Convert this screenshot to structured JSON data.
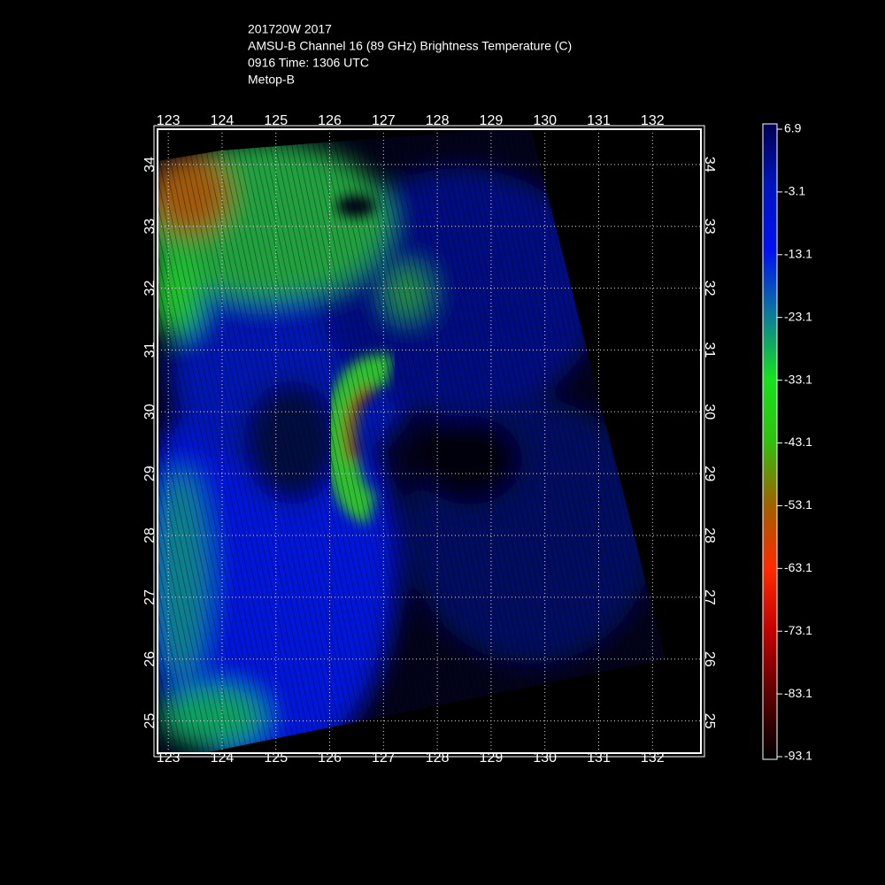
{
  "map": {
    "title_lines": [
      "201720W 2017",
      "AMSU-B Channel 16 (89 GHz) Brightness Temperature (C)",
      "0916 Time: 1306 UTC",
      "Metop-B"
    ],
    "lonlim": [
      122.8,
      132.9
    ],
    "latlim": [
      24.48,
      34.57
    ],
    "lon_ticks": [
      123,
      124,
      125,
      126,
      127,
      128,
      129,
      130,
      131,
      132
    ],
    "lat_ticks": [
      25,
      26,
      27,
      28,
      29,
      30,
      31,
      32,
      33,
      34
    ],
    "colorbar": {
      "clim": [
        -93.1,
        6.9
      ],
      "ticks": [
        6.9,
        -3.1,
        -13.1,
        -23.1,
        -33.1,
        -43.1,
        -53.1,
        -63.1,
        -73.1,
        -83.1,
        -93.1
      ],
      "colors": [
        "#000000",
        "#5a0000",
        "#c00000",
        "#ff2a00",
        "#a06000",
        "#30c010",
        "#18e020",
        "#0d7a9a",
        "#0010f0",
        "#0015c0",
        "#000050"
      ]
    }
  }
}
